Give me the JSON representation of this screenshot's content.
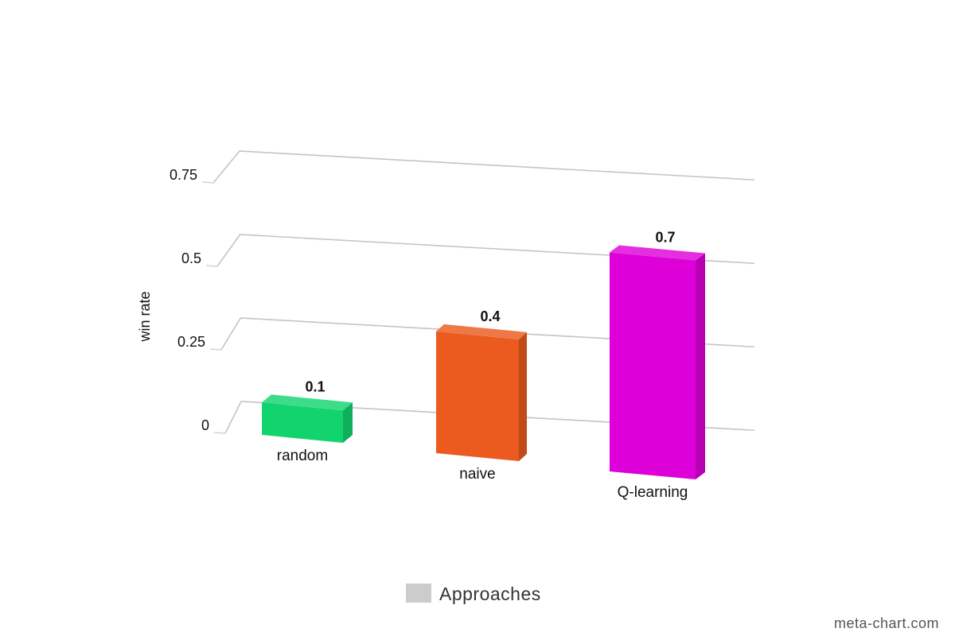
{
  "chart_data": {
    "type": "bar",
    "categories": [
      "random",
      "naive",
      "Q-learning"
    ],
    "series": [
      {
        "name": "Approaches",
        "values": [
          0.1,
          0.4,
          0.7
        ]
      }
    ],
    "data_labels": [
      "0.1",
      "0.4",
      "0.7"
    ],
    "ylabel": "win rate",
    "xlabel": "",
    "ylim": [
      0,
      0.75
    ],
    "y_ticks": [
      0,
      0.25,
      0.5,
      0.75
    ],
    "y_tick_labels": [
      "0",
      "0.25",
      "0.5",
      "0.75"
    ],
    "grid": true,
    "legend_position": "bottom-center",
    "style": "3d",
    "colors": [
      "#12d46e",
      "#eb5a1e",
      "#de00d8"
    ],
    "legend_swatch_color": "#cccccc"
  },
  "legend": {
    "label": "Approaches"
  },
  "watermark": "meta-chart.com"
}
